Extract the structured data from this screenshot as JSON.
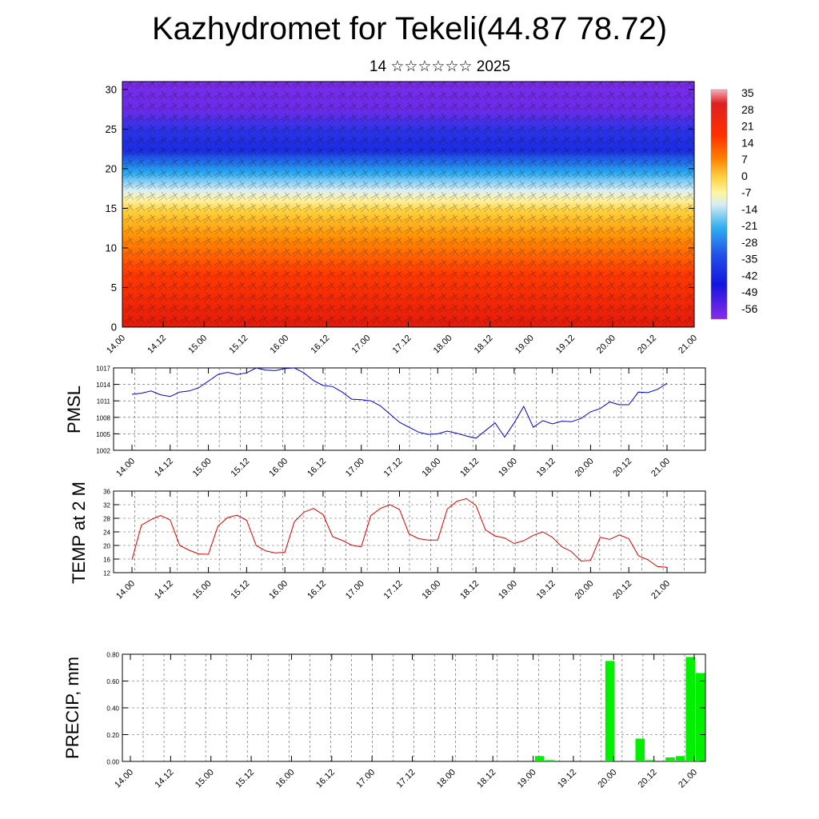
{
  "title": "Kazhydromet for Tekeli(44.87 78.72)",
  "subtitle": "14 ☆☆☆☆☆☆ 2025",
  "x_ticks": [
    "14.00",
    "14.12",
    "15.00",
    "15.12",
    "16.00",
    "16.12",
    "17.00",
    "17.12",
    "18.00",
    "18.12",
    "19.00",
    "19.12",
    "20.00",
    "20.12",
    "21.00"
  ],
  "chart_data": [
    {
      "type": "heatmap",
      "name": "cross-section",
      "y_ticks": [
        "0",
        "5",
        "10",
        "15",
        "20",
        "25",
        "30"
      ],
      "ylim": [
        0,
        31
      ],
      "colorbar": {
        "labels": [
          "35",
          "28",
          "21",
          "14",
          "7",
          "0",
          "-7",
          "-14",
          "-21",
          "-28",
          "-35",
          "-42",
          "-49",
          "-56"
        ],
        "colors": [
          "#f0a0a8",
          "#e02020",
          "#ff2000",
          "#ff6000",
          "#ff9a00",
          "#ffd040",
          "#fff6a0",
          "#d8ecf4",
          "#60c8f0",
          "#20a0f0",
          "#2050e8",
          "#1414e0",
          "#4a20e8",
          "#8a2ce8"
        ]
      },
      "colors": {
        "hot": "#e41a0c",
        "warm": "#ff8c00",
        "yellow": "#ffe15a",
        "cold_light": "#bfe4f5",
        "cyan": "#28a8f0",
        "blue": "#1c2ce0",
        "violet": "#7a2ce8"
      }
    },
    {
      "type": "line",
      "ylabel": "PMSL",
      "y_ticks": [
        "1017",
        "1014",
        "1011",
        "1008",
        "1005",
        "1002"
      ],
      "ylim": [
        1002,
        1017
      ],
      "color": "#0000dd",
      "values": [
        1012.2,
        1012.4,
        1012.8,
        1012.1,
        1011.8,
        1012.6,
        1012.8,
        1013.4,
        1014.6,
        1015.8,
        1016.2,
        1015.8,
        1016.1,
        1017.0,
        1016.6,
        1016.5,
        1016.9,
        1017.0,
        1016.1,
        1014.7,
        1013.8,
        1013.6,
        1012.6,
        1011.3,
        1011.2,
        1011.0,
        1010.1,
        1008.6,
        1007.1,
        1006.2,
        1005.3,
        1004.9,
        1005.0,
        1005.5,
        1005.1,
        1004.6,
        1004.2,
        1005.6,
        1007.0,
        1004.4,
        1007.0,
        1010.0,
        1006.2,
        1007.4,
        1006.8,
        1007.3,
        1007.2,
        1007.8,
        1009.0,
        1009.6,
        1010.8,
        1010.3,
        1010.3,
        1012.6,
        1012.5,
        1013.1,
        1014.2
      ]
    },
    {
      "type": "line",
      "ylabel": "TEMP at 2 M",
      "y_ticks": [
        "36",
        "32",
        "28",
        "24",
        "20",
        "16",
        "12"
      ],
      "ylim": [
        12,
        36
      ],
      "color": "#dd0000",
      "values": [
        15.8,
        26.0,
        27.6,
        28.8,
        27.5,
        20.0,
        18.6,
        17.5,
        17.4,
        25.7,
        28.2,
        28.9,
        27.4,
        20.0,
        18.4,
        17.8,
        18.0,
        27.0,
        29.8,
        30.9,
        29.1,
        22.6,
        21.5,
        20.1,
        19.6,
        28.8,
        30.9,
        32.0,
        30.6,
        23.4,
        22.0,
        21.6,
        21.6,
        30.7,
        33.0,
        33.8,
        31.8,
        24.6,
        22.8,
        22.2,
        20.6,
        21.4,
        23.0,
        24.0,
        22.4,
        19.6,
        18.2,
        15.4,
        15.6,
        22.4,
        21.8,
        23.1,
        22.0,
        17.0,
        15.8,
        13.8,
        13.6
      ]
    },
    {
      "type": "bar",
      "ylabel": "PRECIP, mm",
      "y_ticks": [
        "0.80",
        "0.60",
        "0.40",
        "0.20",
        "0.00"
      ],
      "ylim": [
        0,
        0.8
      ],
      "color": "#00f000",
      "values": [
        0,
        0,
        0,
        0,
        0,
        0,
        0,
        0,
        0,
        0,
        0,
        0,
        0,
        0,
        0,
        0,
        0,
        0,
        0,
        0,
        0,
        0,
        0,
        0,
        0,
        0,
        0,
        0,
        0,
        0,
        0,
        0,
        0,
        0,
        0,
        0,
        0,
        0,
        0,
        0,
        0,
        0.04,
        0.01,
        0,
        0,
        0,
        0,
        0,
        0.75,
        0,
        0,
        0.17,
        0.01,
        0,
        0.03,
        0.04,
        0.78,
        0.66
      ]
    }
  ]
}
